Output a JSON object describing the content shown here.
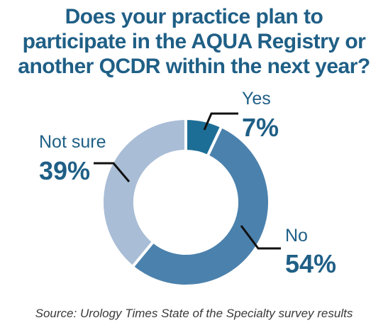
{
  "chart_data": {
    "type": "pie",
    "title_lines": [
      "Does your practice plan to",
      "participate in the AQUA Registry or",
      "another QCDR within the next year?"
    ],
    "slices": [
      {
        "label": "Yes",
        "value": 7,
        "value_label": "7%",
        "color": "#1d6e96"
      },
      {
        "label": "No",
        "value": 54,
        "value_label": "54%",
        "color": "#4b81ad"
      },
      {
        "label": "Not sure",
        "value": 39,
        "value_label": "39%",
        "color": "#a9bdd6"
      }
    ],
    "donut": true,
    "source": "Source: Urology Times State of the Specialty survey results"
  }
}
